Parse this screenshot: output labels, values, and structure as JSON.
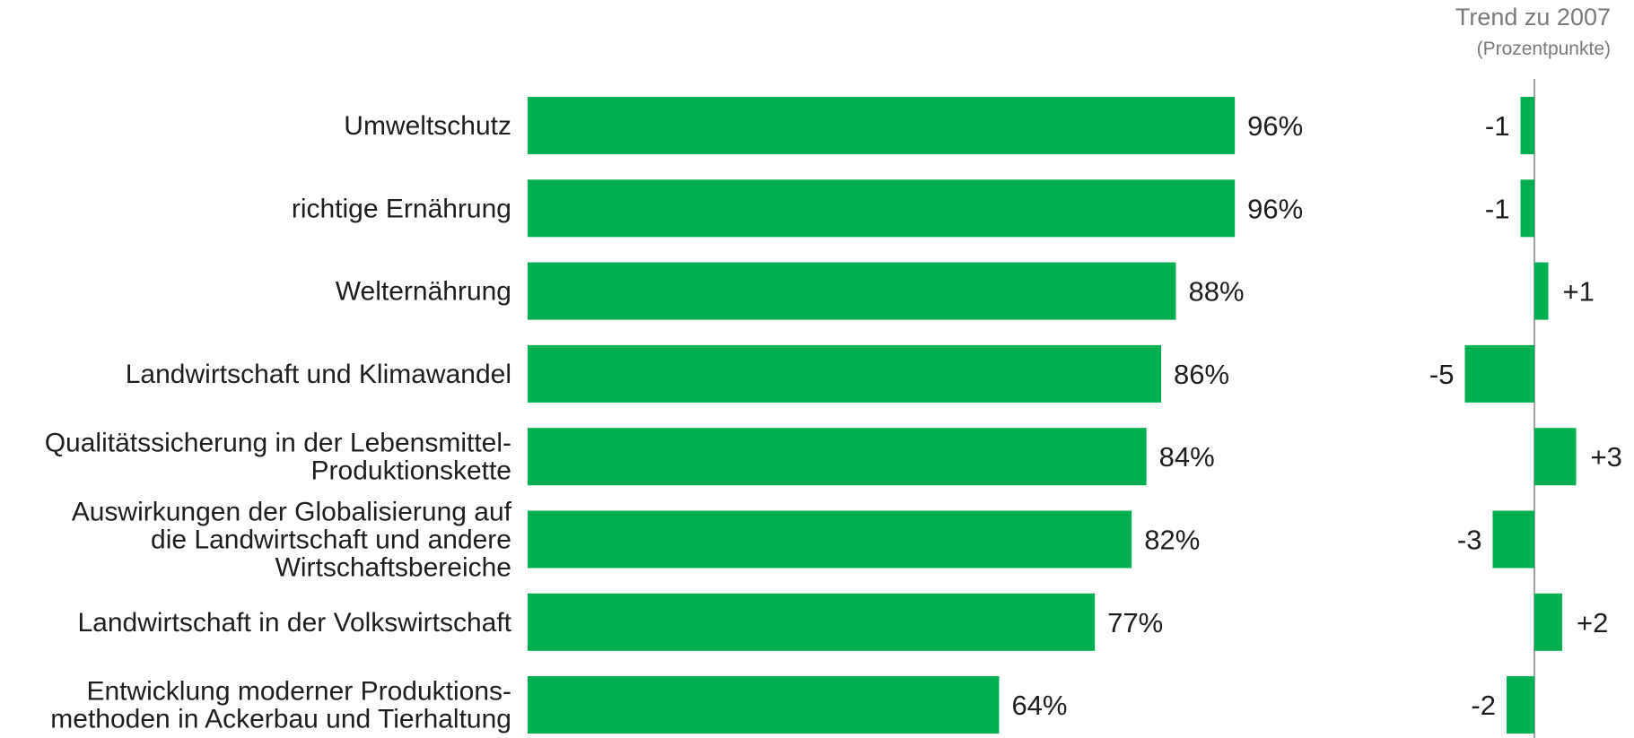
{
  "chart_data": [
    {
      "type": "bar",
      "orientation": "horizontal",
      "categories": [
        [
          "Umweltschutz"
        ],
        [
          "richtige Ernährung"
        ],
        [
          "Welternährung"
        ],
        [
          "Landwirtschaft und Klimawandel"
        ],
        [
          "Qualitätssicherung in der Lebensmittel-",
          "Produktionskette"
        ],
        [
          "Auswirkungen der Globalisierung auf",
          "die Landwirtschaft und andere",
          "Wirtschaftsbereiche"
        ],
        [
          "Landwirtschaft in der Volkswirtschaft"
        ],
        [
          "Entwicklung moderner Produktions-",
          "methoden in Ackerbau und Tierhaltung"
        ]
      ],
      "values": [
        96,
        96,
        88,
        86,
        84,
        82,
        77,
        64
      ],
      "value_labels": [
        "96%",
        "96%",
        "88%",
        "86%",
        "84%",
        "82%",
        "77%",
        "64%"
      ],
      "xlim": [
        0,
        100
      ],
      "grid": false,
      "color": "#00b050"
    },
    {
      "type": "bar",
      "orientation": "horizontal",
      "title": "Trend zu 2007",
      "subtitle": "(Prozentpunkte)",
      "values": [
        -1,
        -1,
        1,
        -5,
        3,
        -3,
        2,
        -2
      ],
      "value_labels": [
        "-1",
        "-1",
        "+1",
        "-5",
        "+3",
        "-3",
        "+2",
        "-2"
      ],
      "grid": false,
      "color": "#00b050",
      "axis_color": "#a0a0a0"
    }
  ]
}
